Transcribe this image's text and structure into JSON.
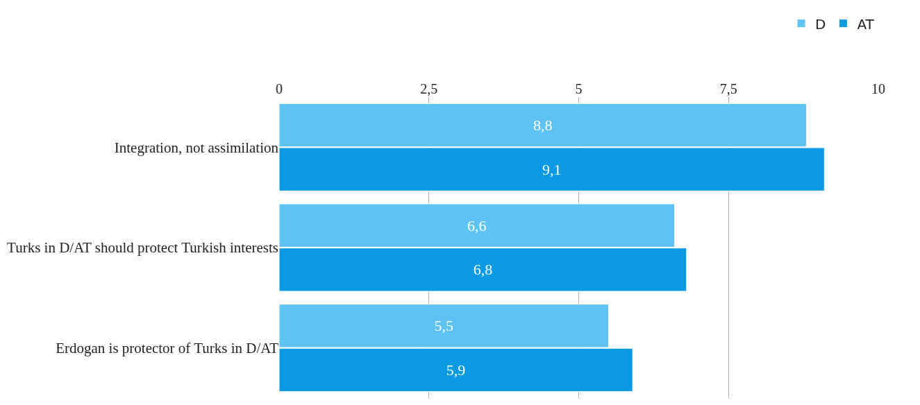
{
  "chart_data": {
    "type": "bar",
    "orientation": "horizontal",
    "categories": [
      "Integration, not assimilation",
      "Turks in D/AT should protect Turkish interests",
      "Erdogan is protector of Turks in D/AT"
    ],
    "series": [
      {
        "name": "D",
        "color": "#5ec3f2",
        "values": [
          8.8,
          6.6,
          5.5
        ],
        "value_labels": [
          "8,8",
          "6,6",
          "5,5"
        ]
      },
      {
        "name": "AT",
        "color": "#0a9ae4",
        "values": [
          9.1,
          6.8,
          5.9
        ],
        "value_labels": [
          "9,1",
          "6,8",
          "5,9"
        ]
      }
    ],
    "xlim": [
      0,
      10
    ],
    "xticks": [
      0,
      {
        "value": 2.5,
        "label": "2,5"
      },
      5,
      {
        "value": 7.5,
        "label": "7,5"
      },
      10
    ],
    "grid": "x",
    "legend": "top right"
  }
}
